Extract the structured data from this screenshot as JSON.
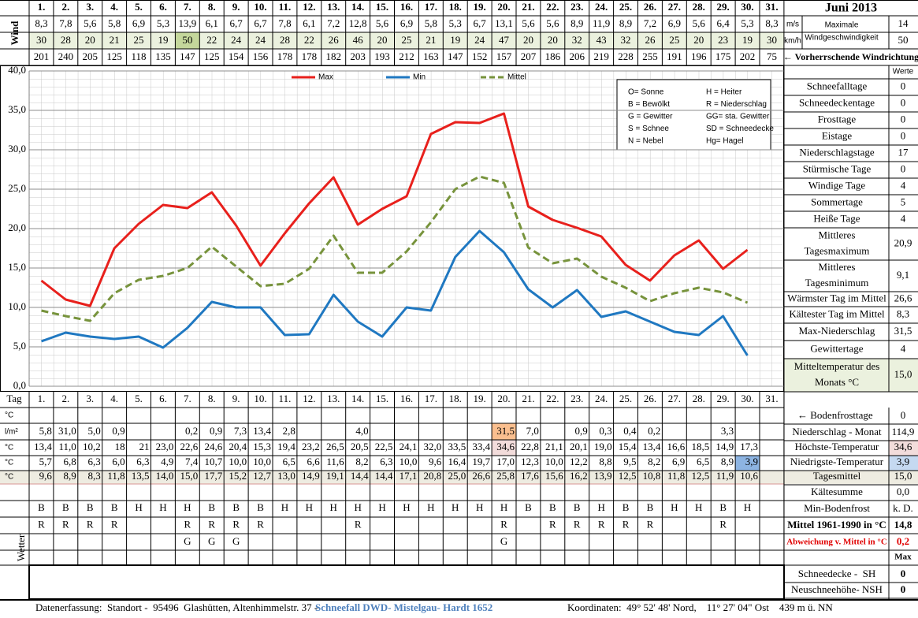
{
  "header": {
    "title": "Juni 2013",
    "wind_label": "Wind",
    "days": [
      "1.",
      "2.",
      "3.",
      "4.",
      "5.",
      "6.",
      "7.",
      "8.",
      "9.",
      "10.",
      "11.",
      "12.",
      "13.",
      "14.",
      "15.",
      "16.",
      "17.",
      "18.",
      "19.",
      "20.",
      "21.",
      "22.",
      "23.",
      "24.",
      "25.",
      "26.",
      "27.",
      "28.",
      "29.",
      "30.",
      "31."
    ],
    "wind_ms": [
      "8,3",
      "7,8",
      "5,6",
      "5,8",
      "6,9",
      "5,3",
      "13,9",
      "6,1",
      "6,7",
      "6,7",
      "7,8",
      "6,1",
      "7,2",
      "12,8",
      "5,6",
      "6,9",
      "5,8",
      "5,3",
      "6,7",
      "13,1",
      "5,6",
      "5,6",
      "8,9",
      "11,9",
      "8,9",
      "7,2",
      "6,9",
      "5,6",
      "6,4",
      "5,3",
      "8,3"
    ],
    "wind_kmh": [
      "30",
      "28",
      "20",
      "21",
      "25",
      "19",
      "50",
      "22",
      "24",
      "24",
      "28",
      "22",
      "26",
      "46",
      "20",
      "25",
      "21",
      "19",
      "24",
      "47",
      "20",
      "20",
      "32",
      "43",
      "32",
      "26",
      "25",
      "20",
      "23",
      "19",
      "30"
    ],
    "wind_dir": [
      "201",
      "240",
      "205",
      "125",
      "118",
      "135",
      "147",
      "125",
      "154",
      "156",
      "178",
      "178",
      "182",
      "203",
      "193",
      "212",
      "163",
      "147",
      "152",
      "157",
      "207",
      "186",
      "206",
      "219",
      "228",
      "255",
      "191",
      "196",
      "175",
      "202",
      "75"
    ],
    "unit_ms": "m/s",
    "unit_kmh": "km/h",
    "max_wind_label": [
      "Maximale",
      "Windgeschwindigkeit"
    ],
    "max_wind_ms": "14",
    "max_wind_kmh": "50",
    "direction_label": "← Vorherrschende Windrichtung"
  },
  "chart_data": {
    "type": "line",
    "categories": [
      "1.",
      "2.",
      "3.",
      "4.",
      "5.",
      "6.",
      "7.",
      "8.",
      "9.",
      "10.",
      "11.",
      "12.",
      "13.",
      "14.",
      "15.",
      "16.",
      "17.",
      "18.",
      "19.",
      "20.",
      "21.",
      "22.",
      "23.",
      "24.",
      "25.",
      "26.",
      "27.",
      "28.",
      "29.",
      "30.",
      "31."
    ],
    "series": [
      {
        "name": "Max",
        "color": "#e8201c",
        "line_style": "solid",
        "values": [
          13.4,
          11.0,
          10.2,
          17.5,
          20.6,
          23.0,
          22.6,
          24.6,
          20.4,
          15.3,
          19.4,
          23.2,
          26.5,
          20.5,
          22.5,
          24.1,
          32.0,
          33.5,
          33.4,
          34.6,
          22.8,
          21.1,
          20.1,
          19.0,
          15.4,
          13.4,
          16.6,
          18.5,
          14.9,
          17.3,
          null
        ]
      },
      {
        "name": "Min",
        "color": "#1f78c1",
        "line_style": "solid",
        "values": [
          5.7,
          6.8,
          6.3,
          6.0,
          6.3,
          4.9,
          7.4,
          10.7,
          10.0,
          10.0,
          6.5,
          6.6,
          11.6,
          8.2,
          6.3,
          10.0,
          9.6,
          16.4,
          19.7,
          17.0,
          12.3,
          10.0,
          12.2,
          8.8,
          9.5,
          8.2,
          6.9,
          6.5,
          8.9,
          3.9,
          null
        ]
      },
      {
        "name": "Mittel",
        "color": "#77933c",
        "line_style": "dashed",
        "values": [
          9.6,
          8.9,
          8.3,
          11.8,
          13.5,
          14.0,
          15.0,
          17.7,
          15.2,
          12.7,
          13.0,
          14.9,
          19.1,
          14.4,
          14.4,
          17.1,
          20.8,
          25.0,
          26.6,
          25.8,
          17.6,
          15.6,
          16.2,
          13.9,
          12.5,
          10.8,
          11.8,
          12.5,
          11.9,
          10.6,
          null
        ]
      }
    ],
    "ylim": [
      0,
      40
    ],
    "yticks": [
      {
        "value": 0,
        "label": "0,0"
      },
      {
        "value": 5,
        "label": "5,0"
      },
      {
        "value": 10,
        "label": "10,0"
      },
      {
        "value": 15,
        "label": "15,0"
      },
      {
        "value": 20,
        "label": "20,0"
      },
      {
        "value": 25,
        "label": "25,0"
      },
      {
        "value": 30,
        "label": "30,0"
      },
      {
        "value": 35,
        "label": "35,0"
      },
      {
        "value": 40,
        "label": "40,0"
      }
    ],
    "grid": true,
    "x_label": "Tag"
  },
  "codes": [
    [
      "O= Sonne",
      "H = Heiter"
    ],
    [
      "B = Bewölkt",
      "R = Niederschlag"
    ],
    [
      "G = Gewitter",
      "GG= sta. Gewitter"
    ],
    [
      "S = Schnee",
      "SD = Schneedecke"
    ],
    [
      "N = Nebel",
      "Hg= Hagel"
    ]
  ],
  "table": {
    "rows": [
      {
        "label": "°C"
      },
      {
        "label": "l/m²",
        "values": [
          "5,8",
          "31,0",
          "5,0",
          "0,9",
          null,
          null,
          "0,2",
          "0,9",
          "7,3",
          "13,4",
          "2,8",
          null,
          null,
          "4,0",
          null,
          null,
          null,
          null,
          null,
          "31,5",
          "7,0",
          null,
          "0,9",
          "0,3",
          "0,4",
          "0,2",
          null,
          null,
          "3,3",
          null,
          null
        ]
      },
      {
        "label": "°C",
        "values": [
          "13,4",
          "11,0",
          "10,2",
          "18",
          "21",
          "23,0",
          "22,6",
          "24,6",
          "20,4",
          "15,3",
          "19,4",
          "23,2",
          "26,5",
          "20,5",
          "22,5",
          "24,1",
          "32,0",
          "33,5",
          "33,4",
          "34,6",
          "22,8",
          "21,1",
          "20,1",
          "19,0",
          "15,4",
          "13,4",
          "16,6",
          "18,5",
          "14,9",
          "17,3",
          null
        ]
      },
      {
        "label": "°C",
        "values": [
          "5,7",
          "6,8",
          "6,3",
          "6,0",
          "6,3",
          "4,9",
          "7,4",
          "10,7",
          "10,0",
          "10,0",
          "6,5",
          "6,6",
          "11,6",
          "8,2",
          "6,3",
          "10,0",
          "9,6",
          "16,4",
          "19,7",
          "17,0",
          "12,3",
          "10,0",
          "12,2",
          "8,8",
          "9,5",
          "8,2",
          "6,9",
          "6,5",
          "8,9",
          "3,9",
          null
        ]
      },
      {
        "label": "°C",
        "values": [
          "9,6",
          "8,9",
          "8,3",
          "11,8",
          "13,5",
          "14,0",
          "15,0",
          "17,7",
          "15,2",
          "12,7",
          "13,0",
          "14,9",
          "19,1",
          "14,4",
          "14,4",
          "17,1",
          "20,8",
          "25,0",
          "26,6",
          "25,8",
          "17,6",
          "15,6",
          "16,2",
          "13,9",
          "12,5",
          "10,8",
          "11,8",
          "12,5",
          "11,9",
          "10,6",
          null
        ]
      }
    ],
    "weather_label": "Wetter",
    "weather": [
      [
        "B",
        "B",
        "B",
        "B",
        "H",
        "H",
        "H",
        "B",
        "B",
        "B",
        "H",
        "H",
        "H",
        "H",
        "H",
        "H",
        "H",
        "H",
        "H",
        "H",
        "B",
        "B",
        "B",
        "H",
        "B",
        "B",
        "H",
        "H",
        "B",
        "H",
        null
      ],
      [
        "R",
        "R",
        "R",
        "R",
        null,
        null,
        "R",
        "R",
        "R",
        "R",
        null,
        null,
        null,
        "R",
        null,
        null,
        null,
        null,
        null,
        "R",
        null,
        "R",
        "R",
        "R",
        "R",
        "R",
        null,
        null,
        "R",
        null,
        null
      ],
      [
        null,
        null,
        null,
        null,
        null,
        null,
        "G",
        "G",
        "G",
        null,
        null,
        null,
        null,
        null,
        null,
        null,
        null,
        null,
        null,
        "G",
        null,
        null,
        null,
        null,
        null,
        null,
        null,
        null,
        null,
        null,
        null
      ]
    ]
  },
  "stats": {
    "header": "Werte",
    "items": [
      {
        "label": [
          "Schneefalltage"
        ],
        "value": "0"
      },
      {
        "label": [
          "Schneedeckentage"
        ],
        "value": "0"
      },
      {
        "label": [
          "Frosttage"
        ],
        "value": "0"
      },
      {
        "label": [
          "Eistage"
        ],
        "value": "0"
      },
      {
        "label": [
          "Niederschlagstage"
        ],
        "value": "17"
      },
      {
        "label": [
          "Stürmische Tage"
        ],
        "value": "0"
      },
      {
        "label": [
          "Windige Tage"
        ],
        "value": "4"
      },
      {
        "label": [
          "Sommertage"
        ],
        "value": "5"
      },
      {
        "label": [
          "Heiße Tage"
        ],
        "value": "4"
      },
      {
        "label": [
          "Mittleres",
          "Tagesmaximum"
        ],
        "value": "20,9"
      },
      {
        "label": [
          "Mittleres",
          "Tagesminimum"
        ],
        "value": "9,1"
      },
      {
        "label": [
          "Wärmster Tag im Mittel"
        ],
        "value": "26,6"
      },
      {
        "label": [
          "Kältester Tag im Mittel"
        ],
        "value": "8,3"
      },
      {
        "label": [
          "Max-Niederschlag"
        ],
        "value": "31,5"
      },
      {
        "label": [
          "Gewittertage"
        ],
        "value": "4"
      },
      {
        "label": [
          "Mitteltemperatur des",
          "Monats °C"
        ],
        "value": "15,0"
      }
    ]
  },
  "lower_stats": [
    {
      "label": "← Bodenfrosttage",
      "value": "0"
    },
    {
      "label": "Niederschlag - Monat",
      "value": "114,9"
    },
    {
      "label": "Höchste-Temperatur",
      "value": "34,6"
    },
    {
      "label": "Niedrigste-Temperatur",
      "value": "3,9"
    },
    {
      "label": "Tagesmittel",
      "value": "15,0"
    },
    {
      "label": "Kältesumme",
      "value": "0,0"
    },
    {
      "label": "Min-Bodenfrost",
      "value": "k. D."
    },
    {
      "label": "Mittel 1961-1990 in °C",
      "value": "14,8"
    },
    {
      "label": "Abweichung v. Mittel in °C",
      "value": "0,2"
    },
    {
      "value": "Max"
    },
    {
      "label": "Schneedecke -  SH",
      "value": "0"
    },
    {
      "label": "Neuschneehöhe- NSH",
      "value": "0"
    }
  ],
  "footer": {
    "left": "Datenerfassung:  Standort -  95496  Glashütten, Altenhimmelstr. 37 -",
    "source": "Schneefall DWD- Mistelgau- Hardt 1652",
    "coordinates": "Koordinaten:  49° 52' 48' Nord,    11° 27' 04\" Ost    439 m ü. NN"
  }
}
